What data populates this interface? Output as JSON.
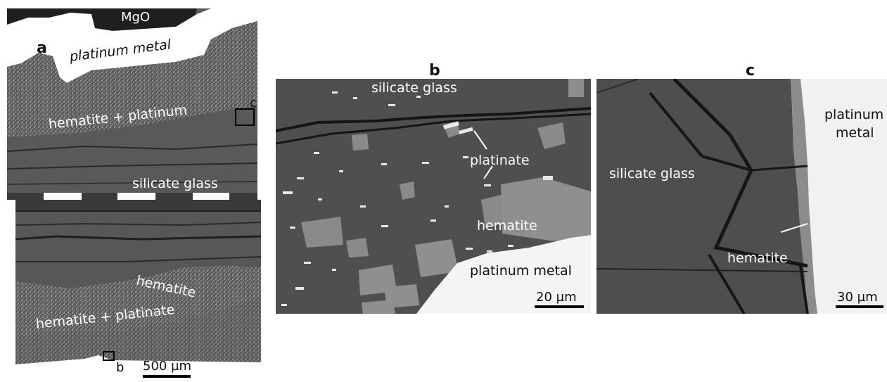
{
  "panels": {
    "a": {
      "letter": "a",
      "labels": {
        "mgo": "MgO",
        "platinum_metal": "platinum metal",
        "hematite_platinum": "hematite + platinum",
        "silicate_glass": "silicate glass",
        "hematite": "hematite",
        "hematite_platinate": "hematite + platinate",
        "box_c": "c",
        "box_b": "b"
      },
      "scale_bar": "500 µm"
    },
    "b": {
      "title": "b",
      "labels": {
        "silicate_glass": "silicate glass",
        "platinate": "platinate",
        "hematite": "hematite",
        "platinum_metal": "platinum metal"
      },
      "scale_bar": "20 µm"
    },
    "c": {
      "title": "c",
      "labels": {
        "platinum_metal_line1": "platinum",
        "platinum_metal_line2": "metal",
        "silicate_glass": "silicate glass",
        "hematite": "hematite"
      },
      "scale_bar": "30 µm"
    }
  }
}
